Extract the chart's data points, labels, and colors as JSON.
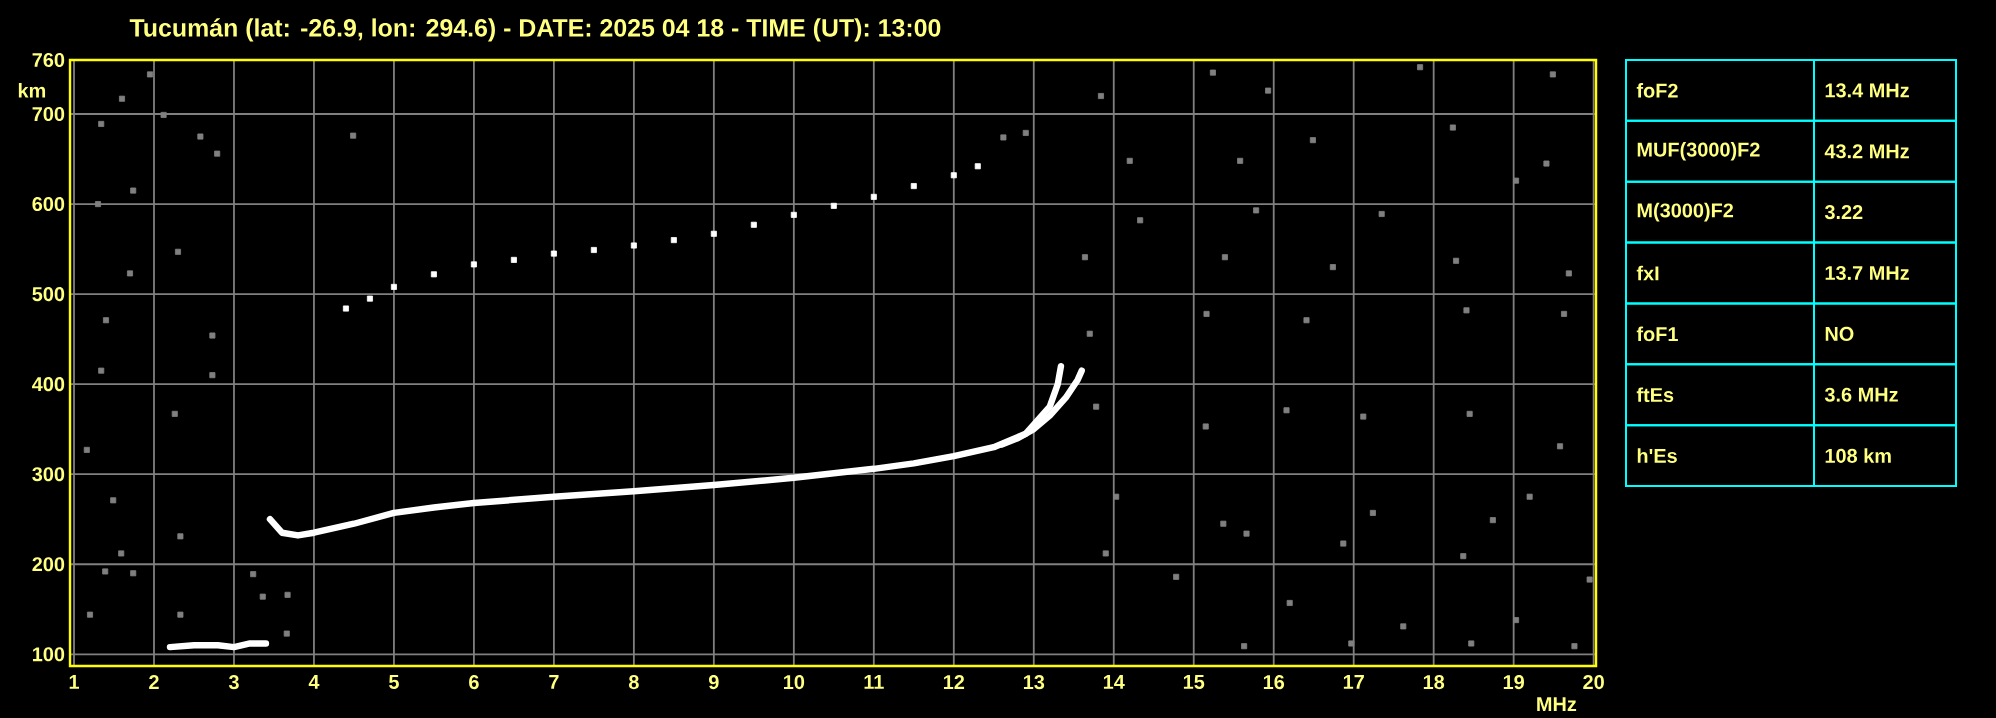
{
  "chart_data": [
    {
      "type": "scatter",
      "title": "Tucumán (lat: -26.9, lon: 294.6) - DATE: 2025 04 18 - TIME (UT): 13:00",
      "xlabel": "MHz",
      "ylabel": "km",
      "xlim": [
        0.95,
        20.03
      ],
      "ylim": [
        87,
        760
      ],
      "xticks": [
        1,
        2,
        3,
        4,
        5,
        6,
        7,
        8,
        9,
        10,
        11,
        12,
        13,
        14,
        15,
        16,
        17,
        18,
        19,
        20
      ],
      "yticks": [
        100,
        200,
        300,
        400,
        500,
        600,
        700,
        760
      ],
      "grid": true,
      "series": [
        {
          "type": "line",
          "marker": "none",
          "color": "#ffffff",
          "x": [
            3.45,
            3.6,
            3.8,
            4.0,
            4.5,
            5.0,
            5.5,
            6.0,
            7.0,
            8.0,
            9.0,
            10.0,
            11.0,
            11.5,
            12.0,
            12.5,
            12.9,
            13.0,
            13.2,
            13.3,
            13.34
          ],
          "values": [
            250,
            235,
            232,
            235,
            245,
            257,
            263,
            268,
            275,
            281,
            288,
            296,
            306,
            312,
            320,
            330,
            345,
            355,
            375,
            400,
            420
          ]
        },
        {
          "type": "line",
          "marker": "none",
          "color": "#ffffff",
          "x": [
            12.6,
            12.8,
            13.0,
            13.2,
            13.4,
            13.55,
            13.6
          ],
          "values": [
            333,
            340,
            350,
            365,
            385,
            405,
            415
          ]
        },
        {
          "type": "line",
          "marker": "none",
          "color": "#ffffff",
          "x": [
            2.2,
            2.5,
            2.8,
            3.0,
            3.2,
            3.4
          ],
          "values": [
            108,
            110,
            110,
            108,
            112,
            112
          ]
        },
        {
          "type": "scatter",
          "marker": "square",
          "color": "#ffffff",
          "x": [
            4.4,
            4.7,
            5.0,
            5.5,
            6.0,
            6.5,
            7.0,
            7.5,
            8.0,
            8.5,
            9.0,
            9.5,
            10.0,
            10.5,
            11.0,
            11.5,
            12.0,
            12.3
          ],
          "values": [
            484,
            495,
            508,
            522,
            533,
            538,
            545,
            549,
            554,
            560,
            567,
            577,
            588,
            598,
            608,
            620,
            632,
            642
          ]
        },
        {
          "type": "scatter",
          "marker": "square",
          "color": "#808080",
          "x": [
            1.95,
            1.6,
            1.34,
            2.12,
            2.58,
            2.79,
            1.3,
            1.74,
            2.3,
            1.7,
            1.4,
            2.73,
            4.49,
            1.34,
            2.73,
            2.26,
            1.16,
            1.49,
            2.33,
            1.59,
            1.39,
            1.74,
            1.2,
            2.33,
            3.24,
            3.66,
            3.36,
            3.67,
            12.62,
            12.9,
            13.84,
            15.24,
            15.93,
            17.83,
            19.49,
            14.2,
            15.58,
            16.49,
            18.24,
            19.41,
            14.33,
            15.78,
            17.35,
            19.03,
            13.64,
            15.39,
            16.74,
            18.28,
            19.69,
            13.7,
            15.16,
            16.41,
            18.41,
            19.63,
            13.78,
            15.15,
            16.16,
            17.12,
            18.45,
            19.58,
            14.03,
            15.37,
            17.24,
            18.74,
            19.2,
            13.9,
            15.66,
            16.87,
            18.37,
            19.95,
            14.78,
            16.2,
            17.62,
            19.03,
            15.63,
            16.97,
            18.47,
            19.76
          ],
          "values": [
            744,
            717,
            689,
            699,
            675,
            656,
            600,
            615,
            547,
            523,
            471,
            454,
            676,
            415,
            410,
            367,
            327,
            271,
            231,
            212,
            192,
            190,
            144,
            144,
            189,
            123,
            164,
            166,
            674,
            679,
            720,
            746,
            726,
            752,
            744,
            648,
            648,
            671,
            685,
            645,
            582,
            593,
            589,
            626,
            541,
            541,
            530,
            537,
            523,
            456,
            478,
            471,
            482,
            478,
            375,
            353,
            371,
            364,
            367,
            331,
            275,
            245,
            257,
            249,
            275,
            212,
            234,
            223,
            209,
            183,
            186,
            157,
            131,
            138,
            109,
            112,
            112,
            109
          ]
        }
      ]
    },
    {
      "type": "other",
      "annotations": [
        "foF2",
        "13.4 MHz",
        "MUF(3000)F2",
        "43.2 MHz",
        "M(3000)F2",
        "3.22",
        "fxI",
        "13.7 MHz",
        "foF1",
        "NO",
        "ftEs",
        "3.6 MHz",
        "h'Es",
        "108 km"
      ]
    }
  ]
}
